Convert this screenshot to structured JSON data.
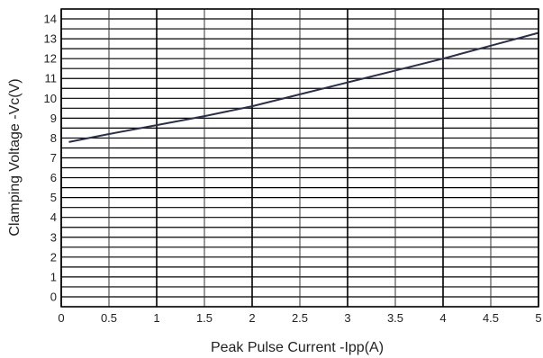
{
  "chart_data": {
    "type": "line",
    "title": "",
    "xlabel": "Peak Pulse Current   -Ipp(A)",
    "ylabel": "Clamping Voltage -Vc(V)",
    "xlim": [
      0,
      5
    ],
    "ylim": [
      -0.5,
      14.5
    ],
    "x_ticks": [
      "0",
      "0.5",
      "1",
      "1.5",
      "2",
      "2.5",
      "3",
      "3.5",
      "4",
      "4.5",
      "5"
    ],
    "y_ticks": [
      "0",
      "1",
      "2",
      "3",
      "4",
      "5",
      "6",
      "7",
      "8",
      "9",
      "10",
      "11",
      "12",
      "13",
      "14"
    ],
    "grid": true,
    "series": [
      {
        "x": [
          0.08,
          0.5,
          1.0,
          1.5,
          2.0,
          2.5,
          3.0,
          3.5,
          4.0,
          4.5,
          5.0
        ],
        "y": [
          7.8,
          8.2,
          8.65,
          9.1,
          9.6,
          10.2,
          10.8,
          11.4,
          12.0,
          12.65,
          13.3
        ],
        "color": "#2b2f4a"
      }
    ]
  }
}
